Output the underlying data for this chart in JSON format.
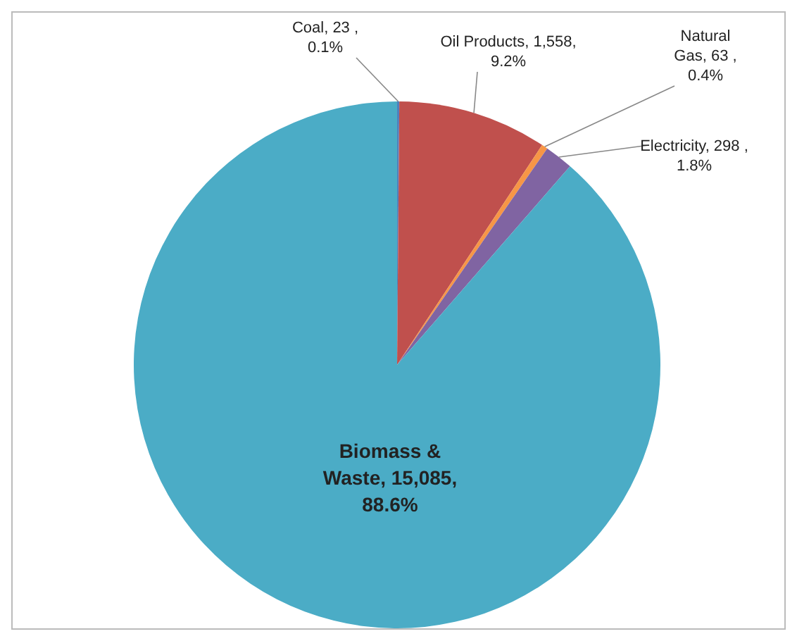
{
  "chart_data": {
    "type": "pie",
    "categories": [
      "Coal",
      "Oil Products",
      "Natural Gas",
      "Electricity",
      "Biomass & Waste"
    ],
    "values": [
      23,
      1558,
      63,
      298,
      15085
    ],
    "colors": [
      "#4f81bd",
      "#c0504d",
      "#f79646",
      "#8064a2",
      "#4bacc6"
    ],
    "value_labels": [
      "23 , 0.1%",
      "1,558, 9.2%",
      "63 , 0.4%",
      "298 , 1.8%",
      "15,085, 88.6%"
    ],
    "legend": false
  }
}
